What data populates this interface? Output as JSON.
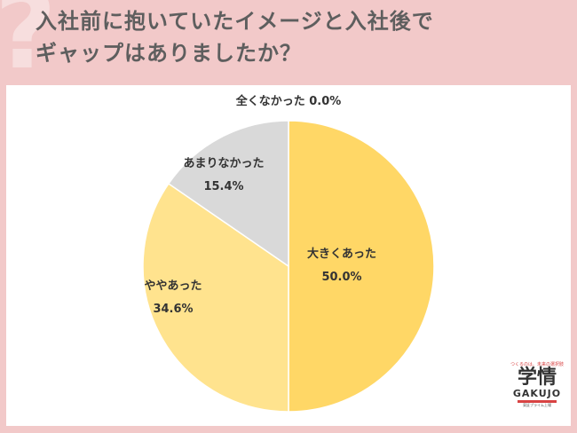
{
  "title": {
    "line1": "入社前に抱いていたイメージと入社後で",
    "line2": "ギャップはありましたか？"
  },
  "colors": {
    "background": "#f2c9c9",
    "slices": [
      "#ffd766",
      "#ffe38e",
      "#d9d9d9",
      "#ececec"
    ]
  },
  "chart_data": {
    "type": "pie",
    "categories": [
      "大きくあった",
      "ややあった",
      "あまりなかった",
      "全くなかった"
    ],
    "values": [
      50.0,
      34.6,
      15.4,
      0.0
    ],
    "labels": [
      "50.0%",
      "34.6%",
      "15.4%",
      "0.0%"
    ],
    "start": "12 o'clock",
    "direction": "clockwise"
  },
  "logo": {
    "tagline": "つくるのは、未来の選択肢",
    "name": "学情",
    "name_en": "GAKUJO",
    "sub": "東証プライム上場"
  }
}
